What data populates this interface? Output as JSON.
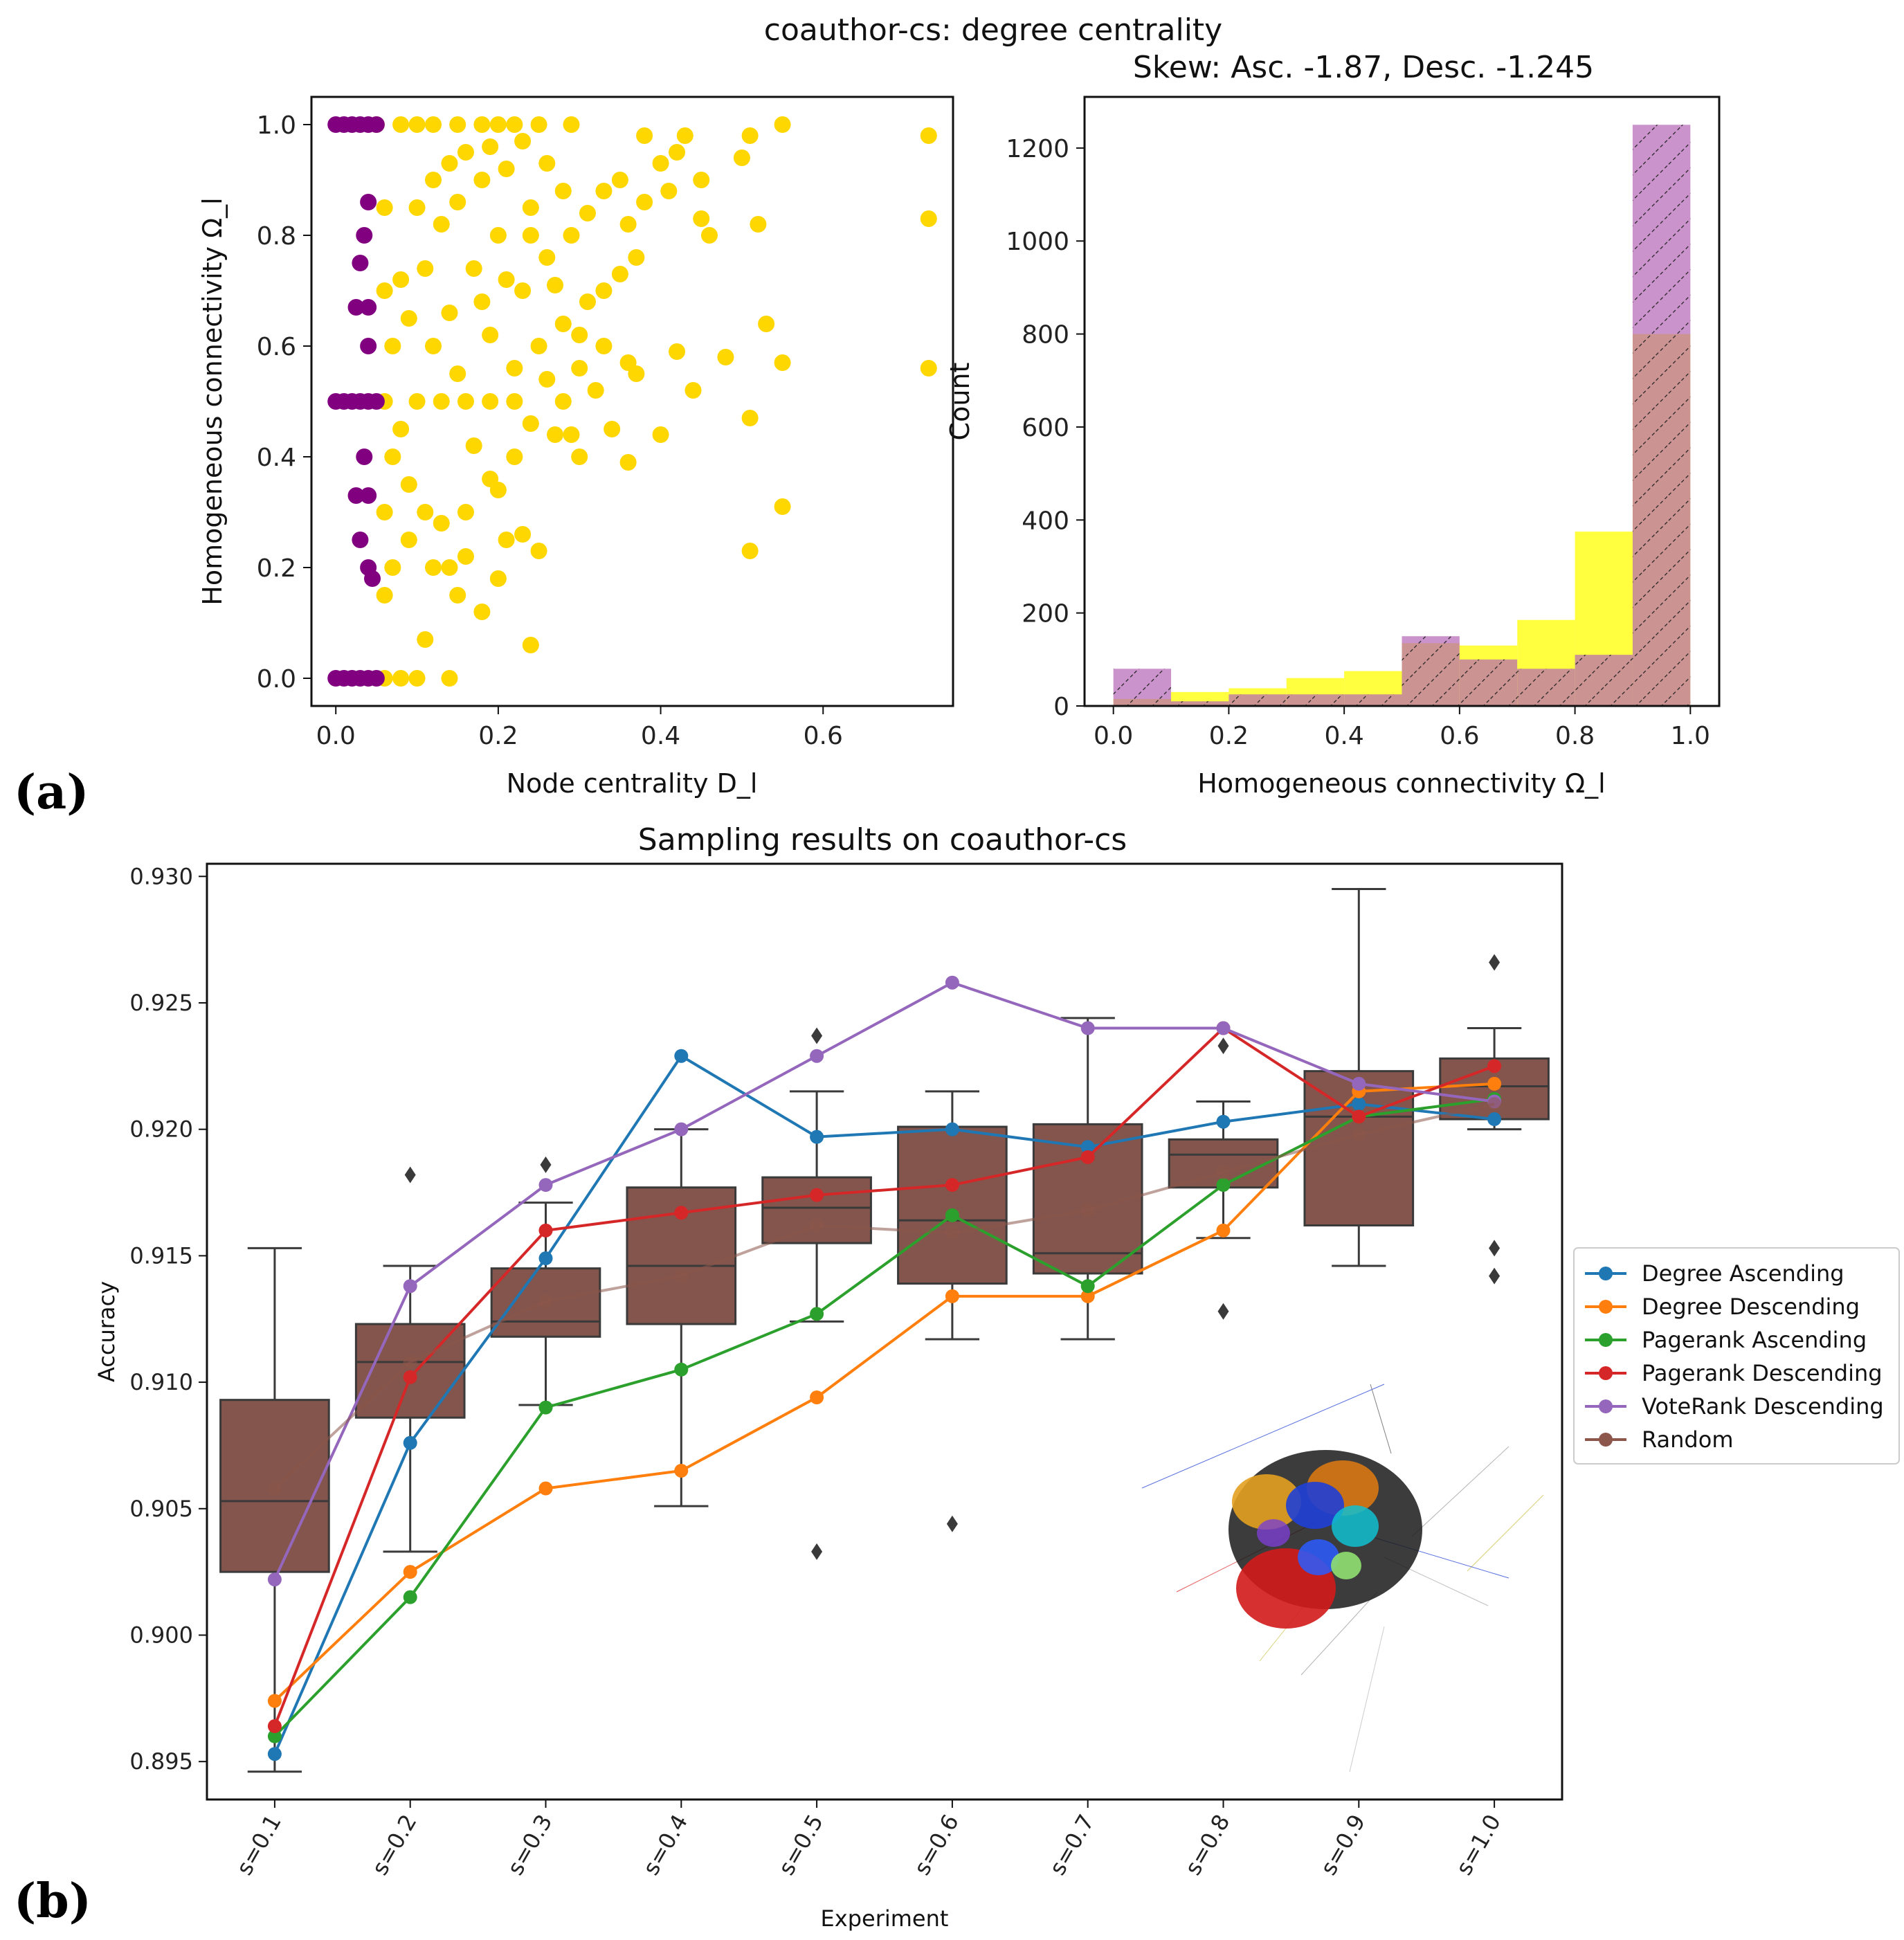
{
  "figure": {
    "panel_a_label": "(a)",
    "panel_b_label": "(b)"
  },
  "chart_data": [
    {
      "id": "scatter",
      "type": "scatter",
      "suptitle": "coauthor-cs: degree centrality",
      "xlabel": "Node centrality D_l",
      "ylabel": "Homogeneous connectivity Ω_l",
      "xlim": [
        -0.03,
        0.76
      ],
      "ylim": [
        -0.05,
        1.05
      ],
      "xticks": [
        "0.0",
        "0.2",
        "0.4",
        "0.6"
      ],
      "yticks": [
        "0.0",
        "0.2",
        "0.4",
        "0.6",
        "0.8",
        "1.0"
      ],
      "series": [
        {
          "name": "yellow",
          "color": "#FFD700",
          "points": [
            [
              0.05,
              1.0
            ],
            [
              0.08,
              1.0
            ],
            [
              0.1,
              1.0
            ],
            [
              0.12,
              1.0
            ],
            [
              0.15,
              1.0
            ],
            [
              0.18,
              1.0
            ],
            [
              0.2,
              1.0
            ],
            [
              0.22,
              1.0
            ],
            [
              0.25,
              1.0
            ],
            [
              0.29,
              1.0
            ],
            [
              0.38,
              0.98
            ],
            [
              0.43,
              0.98
            ],
            [
              0.51,
              0.98
            ],
            [
              0.55,
              1.0
            ],
            [
              0.73,
              0.98
            ],
            [
              0.73,
              0.83
            ],
            [
              0.73,
              0.56
            ],
            [
              0.52,
              0.82
            ],
            [
              0.5,
              0.94
            ],
            [
              0.45,
              0.9
            ],
            [
              0.42,
              0.95
            ],
            [
              0.4,
              0.93
            ],
            [
              0.45,
              0.83
            ],
            [
              0.46,
              0.8
            ],
            [
              0.41,
              0.88
            ],
            [
              0.38,
              0.86
            ],
            [
              0.36,
              0.82
            ],
            [
              0.35,
              0.73
            ],
            [
              0.37,
              0.76
            ],
            [
              0.33,
              0.7
            ],
            [
              0.31,
              0.68
            ],
            [
              0.33,
              0.6
            ],
            [
              0.36,
              0.57
            ],
            [
              0.42,
              0.59
            ],
            [
              0.48,
              0.58
            ],
            [
              0.55,
              0.57
            ],
            [
              0.53,
              0.64
            ],
            [
              0.44,
              0.52
            ],
            [
              0.51,
              0.47
            ],
            [
              0.4,
              0.44
            ],
            [
              0.37,
              0.55
            ],
            [
              0.3,
              0.56
            ],
            [
              0.28,
              0.5
            ],
            [
              0.26,
              0.54
            ],
            [
              0.29,
              0.44
            ],
            [
              0.3,
              0.4
            ],
            [
              0.27,
              0.44
            ],
            [
              0.24,
              0.46
            ],
            [
              0.22,
              0.4
            ],
            [
              0.2,
              0.34
            ],
            [
              0.21,
              0.25
            ],
            [
              0.25,
              0.23
            ],
            [
              0.23,
              0.26
            ],
            [
              0.18,
              0.12
            ],
            [
              0.15,
              0.15
            ],
            [
              0.14,
              0.2
            ],
            [
              0.12,
              0.2
            ],
            [
              0.11,
              0.07
            ],
            [
              0.24,
              0.06
            ],
            [
              0.51,
              0.23
            ],
            [
              0.55,
              0.31
            ],
            [
              0.08,
              0.45
            ],
            [
              0.07,
              0.6
            ],
            [
              0.08,
              0.72
            ],
            [
              0.1,
              0.85
            ],
            [
              0.12,
              0.9
            ],
            [
              0.14,
              0.93
            ],
            [
              0.16,
              0.95
            ],
            [
              0.19,
              0.96
            ],
            [
              0.23,
              0.97
            ],
            [
              0.09,
              0.65
            ],
            [
              0.11,
              0.74
            ],
            [
              0.13,
              0.82
            ],
            [
              0.15,
              0.86
            ],
            [
              0.18,
              0.9
            ],
            [
              0.21,
              0.92
            ],
            [
              0.26,
              0.93
            ],
            [
              0.28,
              0.88
            ],
            [
              0.24,
              0.85
            ],
            [
              0.2,
              0.8
            ],
            [
              0.17,
              0.74
            ],
            [
              0.14,
              0.66
            ],
            [
              0.12,
              0.6
            ],
            [
              0.1,
              0.5
            ],
            [
              0.13,
              0.5
            ],
            [
              0.16,
              0.5
            ],
            [
              0.19,
              0.5
            ],
            [
              0.22,
              0.5
            ],
            [
              0.07,
              0.4
            ],
            [
              0.09,
              0.35
            ],
            [
              0.11,
              0.3
            ],
            [
              0.13,
              0.28
            ],
            [
              0.16,
              0.3
            ],
            [
              0.19,
              0.36
            ],
            [
              0.17,
              0.42
            ],
            [
              0.15,
              0.55
            ],
            [
              0.19,
              0.62
            ],
            [
              0.23,
              0.7
            ],
            [
              0.26,
              0.76
            ],
            [
              0.29,
              0.8
            ],
            [
              0.31,
              0.84
            ],
            [
              0.33,
              0.88
            ],
            [
              0.35,
              0.9
            ],
            [
              0.28,
              0.64
            ],
            [
              0.25,
              0.6
            ],
            [
              0.22,
              0.56
            ],
            [
              0.06,
              0.3
            ],
            [
              0.07,
              0.2
            ],
            [
              0.06,
              0.15
            ],
            [
              0.09,
              0.25
            ],
            [
              0.08,
              0.0
            ],
            [
              0.1,
              0.0
            ],
            [
              0.14,
              0.0
            ],
            [
              0.06,
              0.0
            ],
            [
              0.06,
              0.5
            ],
            [
              0.06,
              0.7
            ],
            [
              0.06,
              0.85
            ],
            [
              0.18,
              0.68
            ],
            [
              0.21,
              0.72
            ],
            [
              0.24,
              0.8
            ],
            [
              0.27,
              0.71
            ],
            [
              0.3,
              0.62
            ],
            [
              0.32,
              0.52
            ],
            [
              0.34,
              0.45
            ],
            [
              0.36,
              0.39
            ],
            [
              0.16,
              0.22
            ],
            [
              0.2,
              0.18
            ]
          ]
        },
        {
          "name": "purple",
          "color": "#800080",
          "points": [
            [
              0.0,
              1.0
            ],
            [
              0.01,
              1.0
            ],
            [
              0.02,
              1.0
            ],
            [
              0.03,
              1.0
            ],
            [
              0.04,
              1.0
            ],
            [
              0.05,
              1.0
            ],
            [
              0.0,
              0.0
            ],
            [
              0.01,
              0.0
            ],
            [
              0.02,
              0.0
            ],
            [
              0.03,
              0.0
            ],
            [
              0.04,
              0.0
            ],
            [
              0.05,
              0.0
            ],
            [
              0.0,
              0.5
            ],
            [
              0.01,
              0.5
            ],
            [
              0.02,
              0.5
            ],
            [
              0.03,
              0.5
            ],
            [
              0.04,
              0.5
            ],
            [
              0.05,
              0.5
            ],
            [
              0.04,
              0.86
            ],
            [
              0.035,
              0.8
            ],
            [
              0.03,
              0.75
            ],
            [
              0.025,
              0.67
            ],
            [
              0.04,
              0.67
            ],
            [
              0.04,
              0.6
            ],
            [
              0.035,
              0.4
            ],
            [
              0.025,
              0.33
            ],
            [
              0.04,
              0.33
            ],
            [
              0.03,
              0.25
            ],
            [
              0.04,
              0.2
            ],
            [
              0.045,
              0.18
            ]
          ]
        }
      ]
    },
    {
      "id": "histogram",
      "type": "bar",
      "title": "Skew: Asc. -1.87, Desc. -1.245",
      "xlabel": "Homogeneous connectivity Ω_l",
      "ylabel": "Count",
      "xlim": [
        -0.05,
        1.05
      ],
      "ylim": [
        0,
        1310
      ],
      "xticks": [
        "0.0",
        "0.2",
        "0.4",
        "0.6",
        "0.8",
        "1.0"
      ],
      "yticks": [
        "0",
        "200",
        "400",
        "600",
        "800",
        "1000",
        "1200"
      ],
      "bin_edges": [
        0.0,
        0.1,
        0.2,
        0.3,
        0.4,
        0.5,
        0.6,
        0.7,
        0.8,
        0.9,
        1.0
      ],
      "series": [
        {
          "name": "Ascending",
          "color": "#FFFF00",
          "values": [
            15,
            30,
            38,
            60,
            75,
            135,
            130,
            185,
            375,
            800
          ]
        },
        {
          "name": "Descending",
          "color": "#B565B5",
          "hatch": true,
          "values": [
            80,
            10,
            25,
            25,
            25,
            150,
            100,
            80,
            110,
            1250
          ]
        }
      ]
    },
    {
      "id": "sampling",
      "type": "line",
      "title": "Sampling results on coauthor-cs",
      "xlabel": "Experiment",
      "ylabel": "Accuracy",
      "ylim": [
        0.8935,
        0.9305
      ],
      "yticks": [
        "0.895",
        "0.900",
        "0.905",
        "0.910",
        "0.915",
        "0.920",
        "0.925",
        "0.930"
      ],
      "categories": [
        "s=0.1",
        "s=0.2",
        "s=0.3",
        "s=0.4",
        "s=0.5",
        "s=0.6",
        "s=0.7",
        "s=0.8",
        "s=0.9",
        "s=1.0"
      ],
      "series": [
        {
          "name": "Degree Ascending",
          "color": "#1f77b4",
          "values": [
            0.8953,
            0.9076,
            0.9149,
            0.9229,
            0.9197,
            0.92,
            0.9193,
            0.9203,
            0.921,
            0.9204
          ]
        },
        {
          "name": "Degree Descending",
          "color": "#ff7f0e",
          "values": [
            0.8974,
            0.9025,
            0.9058,
            0.9065,
            0.9094,
            0.9134,
            0.9134,
            0.916,
            0.9215,
            0.9218
          ]
        },
        {
          "name": "Pagerank Ascending",
          "color": "#2ca02c",
          "values": [
            0.896,
            0.9015,
            0.909,
            0.9105,
            0.9127,
            0.9166,
            0.9138,
            0.9178,
            0.9205,
            0.9212
          ]
        },
        {
          "name": "Pagerank Descending",
          "color": "#d62728",
          "values": [
            0.8964,
            0.9102,
            0.916,
            0.9167,
            0.9174,
            0.9178,
            0.9189,
            0.924,
            0.9205,
            0.9225
          ]
        },
        {
          "name": "VoteRank Descending",
          "color": "#9467bd",
          "values": [
            0.9022,
            0.9138,
            0.9178,
            0.92,
            0.9229,
            0.9258,
            0.924,
            0.924,
            0.9218,
            0.9211
          ]
        },
        {
          "name": "Random",
          "color": "#8c564b",
          "values": [
            0.9058,
            0.9108,
            0.9132,
            0.9142,
            0.9162,
            0.9159,
            0.9168,
            0.9183,
            0.9198,
            0.921
          ]
        }
      ],
      "boxes": [
        {
          "whislo": 0.8946,
          "q1": 0.9025,
          "med": 0.9053,
          "q3": 0.9093,
          "whishi": 0.9153,
          "fliers": []
        },
        {
          "whislo": 0.9033,
          "q1": 0.9086,
          "med": 0.9108,
          "q3": 0.9123,
          "whishi": 0.9146,
          "fliers": [
            0.9182
          ]
        },
        {
          "whislo": 0.9091,
          "q1": 0.9118,
          "med": 0.9124,
          "q3": 0.9145,
          "whishi": 0.9171,
          "fliers": [
            0.9186
          ]
        },
        {
          "whislo": 0.9051,
          "q1": 0.9123,
          "med": 0.9146,
          "q3": 0.9177,
          "whishi": 0.92,
          "fliers": []
        },
        {
          "whislo": 0.9124,
          "q1": 0.9155,
          "med": 0.9169,
          "q3": 0.9181,
          "whishi": 0.9215,
          "fliers": [
            0.9237,
            0.9033
          ]
        },
        {
          "whislo": 0.9117,
          "q1": 0.9139,
          "med": 0.9164,
          "q3": 0.9201,
          "whishi": 0.9215,
          "fliers": [
            0.9044
          ]
        },
        {
          "whislo": 0.9117,
          "q1": 0.9143,
          "med": 0.9151,
          "q3": 0.9202,
          "whishi": 0.9244,
          "fliers": []
        },
        {
          "whislo": 0.9157,
          "q1": 0.9177,
          "med": 0.919,
          "q3": 0.9196,
          "whishi": 0.9211,
          "fliers": [
            0.9233,
            0.9128
          ]
        },
        {
          "whislo": 0.9146,
          "q1": 0.9162,
          "med": 0.9205,
          "q3": 0.9223,
          "whishi": 0.9295,
          "fliers": []
        },
        {
          "whislo": 0.92,
          "q1": 0.9204,
          "med": 0.9217,
          "q3": 0.9228,
          "whishi": 0.924,
          "fliers": [
            0.9266,
            0.9153,
            0.9142
          ]
        }
      ],
      "legend": "center-right"
    }
  ]
}
